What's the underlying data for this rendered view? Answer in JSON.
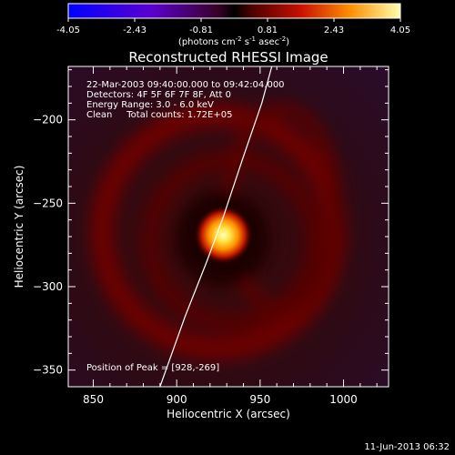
{
  "chart_data": {
    "type": "heatmap",
    "title": "Reconstructed RHESSI Image",
    "xlabel": "Heliocentric X (arcsec)",
    "ylabel": "Heliocentric Y (arcsec)",
    "xlim": [
      835,
      1027
    ],
    "ylim": [
      -360,
      -168
    ],
    "xticks": [
      850,
      900,
      950,
      1000
    ],
    "yticks": [
      -200,
      -250,
      -300,
      -350
    ],
    "colorbar": {
      "range": [
        -4.05,
        4.05
      ],
      "ticks": [
        "-4.05",
        "-2.43",
        "-0.81",
        "0.81",
        "2.43",
        "4.05"
      ],
      "unit_label": "(photons cm",
      "unit_sup1": "-2",
      "unit_mid": " s",
      "unit_sup2": "-1",
      "unit_mid2": " asec",
      "unit_sup3": "-2",
      "unit_end": ")"
    },
    "annotations": [
      "22-Mar-2003 09:40:00.000 to 09:42:04.000",
      "Detectors: 4F 5F 6F 7F 8F, Att 0",
      "Energy Range: 3.0 - 6.0 keV",
      "Clean     Total counts: 1.72E+05"
    ],
    "peak": {
      "label": "Position of Peak = [928,-269]",
      "x": 928,
      "y": -269
    },
    "limb_curve": [
      [
        890,
        -360
      ],
      [
        905,
        -318
      ],
      [
        918,
        -285
      ],
      [
        928,
        -258
      ],
      [
        940,
        -222
      ],
      [
        951,
        -190
      ],
      [
        957,
        -168
      ]
    ],
    "footer": "11-Jun-2013 06:32"
  }
}
